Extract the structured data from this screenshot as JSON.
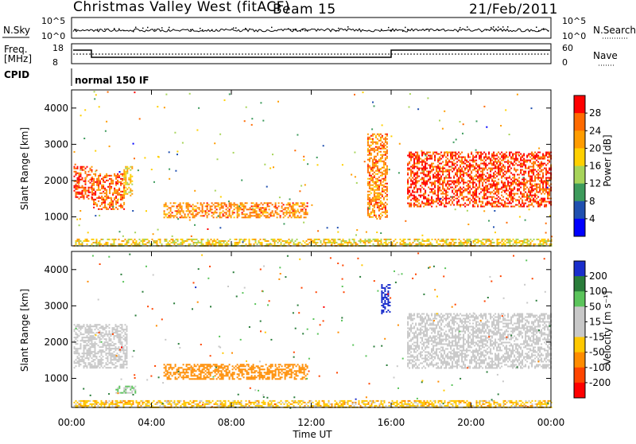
{
  "header": {
    "title": "Christmas Valley West (fitACF)",
    "beam": "Beam 15",
    "date": "21/Feb/2011"
  },
  "panels": {
    "nsky": {
      "label": "N.Sky",
      "tick_top": "10^5",
      "tick_bottom": "10^0",
      "right_label": "N.Search"
    },
    "freq": {
      "label_line1": "Freq.",
      "label_line2": "[MHz]",
      "tick_top": "18",
      "tick_bottom": "8",
      "right_tick_top": "60",
      "right_tick_bottom": "0",
      "right_label": "Nave"
    },
    "cpid": {
      "label": "CPID",
      "text": "normal 150 IF"
    }
  },
  "colorbars": {
    "power": {
      "label": "Power [dB]",
      "ticks": [
        "28",
        "24",
        "20",
        "16",
        "12",
        "8",
        "4"
      ],
      "colors": [
        "#ff0000",
        "#ff6a00",
        "#ff9c00",
        "#ffd000",
        "#a7d45a",
        "#3d9b5c",
        "#2050b0",
        "#0000ff"
      ]
    },
    "velocity": {
      "label": "Velocity [m s⁻¹]",
      "ticks": [
        "200",
        "100",
        "50",
        "15",
        "-15",
        "-50",
        "-100",
        "-200"
      ],
      "colors": [
        "#1a2ecc",
        "#2a7d3a",
        "#5bc45b",
        "#c8c8c8",
        "#c8c8c8",
        "#ffc800",
        "#ff8c00",
        "#ff4500",
        "#ff0000"
      ]
    }
  },
  "x_axis": {
    "label": "Time UT",
    "ticks": [
      "00:00",
      "04:00",
      "08:00",
      "12:00",
      "16:00",
      "20:00",
      "00:00"
    ]
  },
  "chart_data": [
    {
      "type": "heatmap",
      "name": "power",
      "ylabel": "Slant Range [km]",
      "ylim": [
        200,
        4500
      ],
      "yticks": [
        1000,
        2000,
        3000,
        4000
      ],
      "xlim": [
        0,
        24
      ],
      "colorbar_label": "Power [dB]",
      "regions": [
        {
          "x": [
            0.1,
            1.0
          ],
          "y": [
            1500,
            2400
          ],
          "level": 26
        },
        {
          "x": [
            1.0,
            2.6
          ],
          "y": [
            1200,
            2200
          ],
          "level": 24
        },
        {
          "x": [
            2.6,
            3.0
          ],
          "y": [
            1600,
            2400
          ],
          "level": 16
        },
        {
          "x": [
            4.6,
            11.8
          ],
          "y": [
            1000,
            1400
          ],
          "level": 22
        },
        {
          "x": [
            14.8,
            15.8
          ],
          "y": [
            1000,
            3300
          ],
          "level": 22
        },
        {
          "x": [
            16.8,
            24.0
          ],
          "y": [
            1300,
            2800
          ],
          "level": 26
        },
        {
          "x": [
            0.1,
            24.0
          ],
          "y": [
            220,
            400
          ],
          "level": 16
        }
      ]
    },
    {
      "type": "heatmap",
      "name": "velocity",
      "ylabel": "Slant Range [km]",
      "ylim": [
        200,
        4500
      ],
      "yticks": [
        1000,
        2000,
        3000,
        4000
      ],
      "xlim": [
        0,
        24
      ],
      "colorbar_label": "Velocity [m s⁻¹]",
      "regions": [
        {
          "x": [
            0.1,
            2.8
          ],
          "y": [
            1300,
            2500
          ],
          "value": 0
        },
        {
          "x": [
            4.6,
            11.8
          ],
          "y": [
            1000,
            1400
          ],
          "value": -60
        },
        {
          "x": [
            2.2,
            3.2
          ],
          "y": [
            600,
            800
          ],
          "value": 30
        },
        {
          "x": [
            15.5,
            15.9
          ],
          "y": [
            2800,
            3600
          ],
          "value": 200
        },
        {
          "x": [
            16.8,
            24.0
          ],
          "y": [
            1300,
            2800
          ],
          "value": 0
        },
        {
          "x": [
            0.1,
            24.0
          ],
          "y": [
            220,
            400
          ],
          "value": -30
        }
      ]
    }
  ]
}
